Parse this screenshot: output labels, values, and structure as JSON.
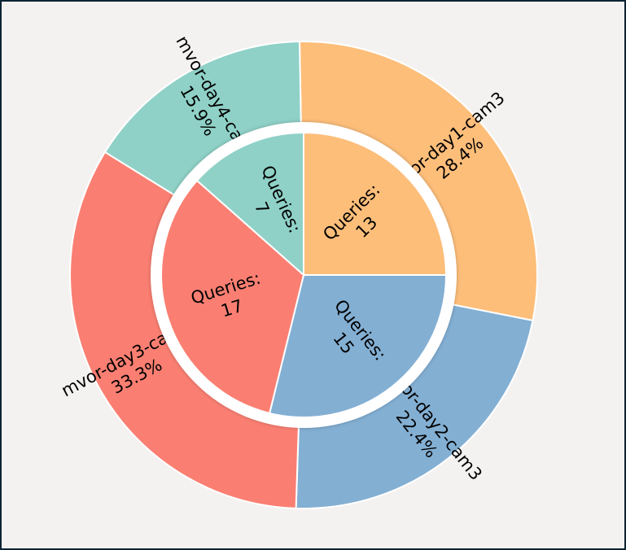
{
  "chart_data": {
    "type": "pie",
    "title": "",
    "outer_ring": {
      "slices": [
        {
          "label": "mvor-day1-cam3",
          "percent_text": "28.4%",
          "value": 28.4,
          "color": "#FDBE7A"
        },
        {
          "label": "mvor-day2-cam3",
          "percent_text": "22.4%",
          "value": 22.4,
          "color": "#83AFD3"
        },
        {
          "label": "mvor-day3-cam1",
          "percent_text": "33.3%",
          "value": 33.3,
          "color": "#FA7F72"
        },
        {
          "label": "mvor-day4-cam3",
          "percent_text": "15.9%",
          "value": 15.9,
          "color": "#8FD1C7"
        }
      ]
    },
    "inner_pie": {
      "prefix": "Queries:",
      "slices": [
        {
          "value": 13,
          "color": "#FDBE7A"
        },
        {
          "value": 15,
          "color": "#83AFD3"
        },
        {
          "value": 17,
          "color": "#FA7F72"
        },
        {
          "value": 7,
          "color": "#8FD1C7"
        }
      ]
    }
  }
}
